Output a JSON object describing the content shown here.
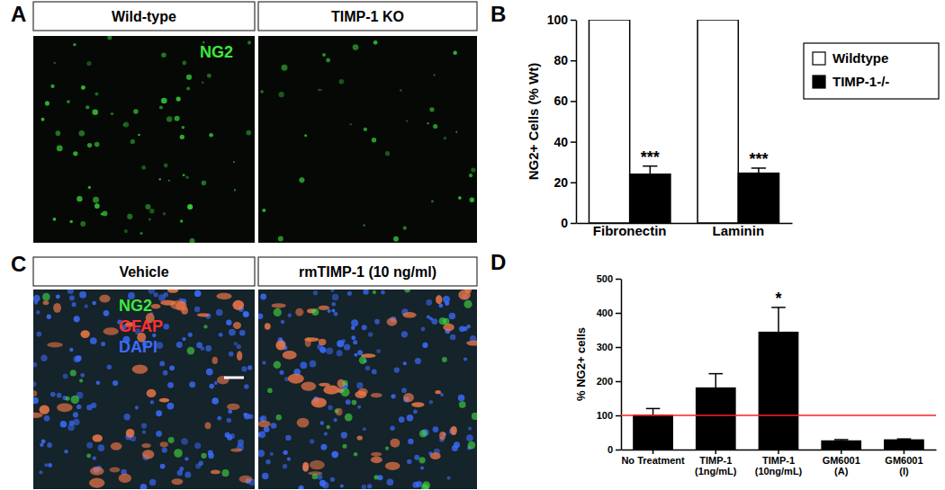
{
  "chart_data": [
    {
      "type": "bar",
      "y_label": "NG2+ Cells (% Wt)",
      "categories": [
        "Fibronectin",
        "Laminin"
      ],
      "series": [
        {
          "name": "Wildtype",
          "color": "#ffffff",
          "values": [
            100,
            100
          ]
        },
        {
          "name": "TIMP-1-/-",
          "color": "#000000",
          "values": [
            24,
            24.5
          ],
          "errors": [
            4,
            2.5
          ],
          "annotations": [
            "***",
            "***"
          ]
        }
      ],
      "ylim": [
        0,
        100
      ],
      "yticks": [
        0,
        20,
        40,
        60,
        80,
        100
      ],
      "legend": "upper right"
    },
    {
      "type": "bar",
      "y_label": "% NG2+ cells",
      "categories": [
        "No Treatment",
        "TIMP-1 (1ng/mL)",
        "TIMP-1 (10ng/mL)",
        "GM6001 (A)",
        "GM6001 (I)"
      ],
      "values": [
        100,
        180,
        343,
        25,
        28
      ],
      "errors": [
        20,
        42,
        73,
        4,
        3
      ],
      "annotations": [
        null,
        null,
        "*",
        null,
        null
      ],
      "color": "#000000",
      "reference_line": {
        "value": 100,
        "color": "#ff2020"
      },
      "ylim": [
        0,
        500
      ],
      "yticks": [
        0,
        100,
        200,
        300,
        400,
        500
      ]
    }
  ],
  "figure": {
    "letters": [
      "A",
      "B",
      "C",
      "D"
    ],
    "images": [
      {
        "title": "Wild-type",
        "stains": [
          {
            "label": "NG2",
            "color": "#3ee83e"
          }
        ]
      },
      {
        "title": "TIMP-1 KO"
      },
      {
        "title": "Vehicle",
        "stains": [
          {
            "label": "NG2",
            "color": "#3ee83e"
          },
          {
            "label": "GFAP",
            "color": "#ff3030"
          },
          {
            "label": "DAPI",
            "color": "#3b6cff"
          }
        ]
      },
      {
        "title": "rmTIMP-1 (10 ng/ml)"
      }
    ]
  }
}
